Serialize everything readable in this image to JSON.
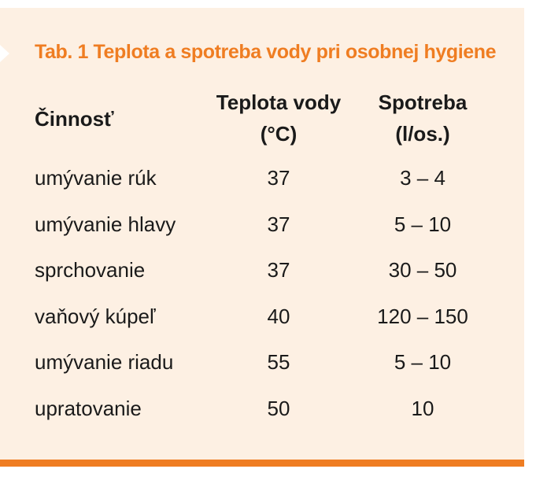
{
  "table": {
    "title": "Tab. 1 Teplota a spotreba vody pri osobnej hygiene",
    "headers": {
      "activity": "Činnosť",
      "temperature_line1": "Teplota vody",
      "temperature_line2": "(°C)",
      "consumption_line1": "Spotreba",
      "consumption_line2": "(l/os.)"
    },
    "rows": [
      {
        "activity": "umývanie rúk",
        "temperature": "37",
        "consumption": "3 – 4"
      },
      {
        "activity": "umývanie hlavy",
        "temperature": "37",
        "consumption": "5 – 10"
      },
      {
        "activity": "sprchovanie",
        "temperature": "37",
        "consumption": "30 – 50"
      },
      {
        "activity": "vaňový kúpeľ",
        "temperature": "40",
        "consumption": "120 – 150"
      },
      {
        "activity": "umývanie riadu",
        "temperature": "55",
        "consumption": "5 – 10"
      },
      {
        "activity": "upratovanie",
        "temperature": "50",
        "consumption": "10"
      }
    ]
  },
  "colors": {
    "accent": "#ef7d22",
    "panel_background": "#fdf0e3",
    "text": "#1a1a1a"
  }
}
